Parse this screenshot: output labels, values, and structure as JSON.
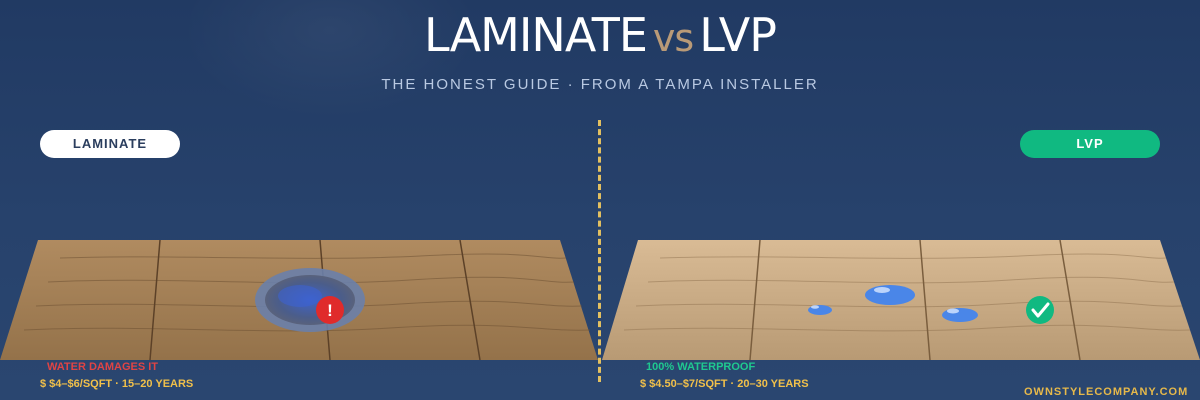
{
  "header": {
    "title_left": "LAMINATE",
    "title_vs": "vs",
    "title_right": "LVP",
    "subtitle": "THE HONEST GUIDE · FROM A TAMPA INSTALLER"
  },
  "laminate": {
    "label": "LAMINATE",
    "warning": "WATER DAMAGES IT",
    "price_years": "$ $4–$6/SQFT · 15–20 YEARS",
    "status_icon": "exclamation-badge-icon",
    "alert_glyph": "!"
  },
  "lvp": {
    "label": "LVP",
    "benefit": "100% WATERPROOF",
    "price_years": "$ $4.50–$7/SQFT · 20–30 YEARS",
    "status_icon": "checkmark-badge-icon"
  },
  "footer": {
    "brand": "OWNSTYLECOMPANY.COM"
  },
  "colors": {
    "background": "#243d66",
    "accent_gold": "#e3c060",
    "vs_tan": "#b99a77",
    "success_green": "#10b981",
    "alert_red": "#e02b2b",
    "water_blue": "#4a86e8"
  }
}
